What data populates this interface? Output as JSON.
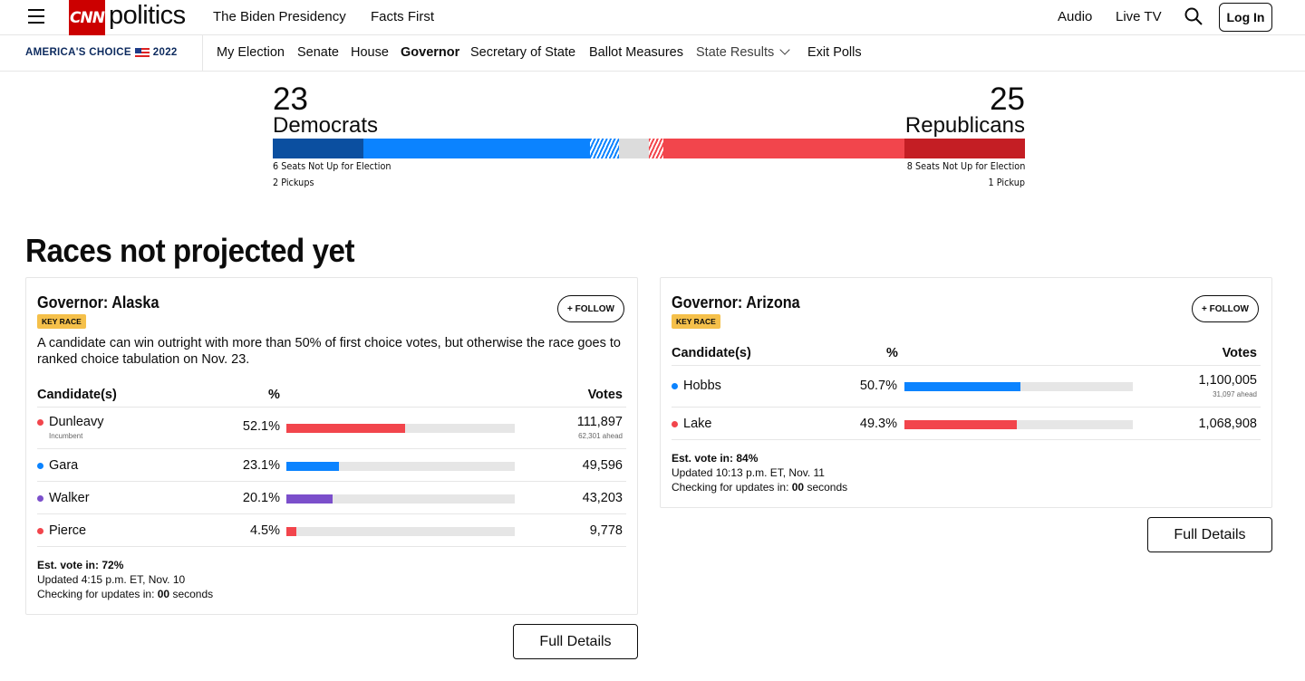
{
  "header": {
    "logo_mark": "CNN",
    "logo_text": "politics",
    "links": [
      "The Biden Presidency",
      "Facts First"
    ],
    "right_links": [
      "Audio",
      "Live TV"
    ],
    "login_label": "Log In"
  },
  "subnav": {
    "brand_left": "AMERICA'S CHOICE",
    "brand_year": "2022",
    "items": [
      "My Election",
      "Senate",
      "House",
      "Governor",
      "Secretary of State",
      "Ballot Measures",
      "State Results",
      "Exit Polls"
    ],
    "active": "Governor"
  },
  "balance": {
    "dem_count": "23",
    "dem_label": "Democrats",
    "rep_count": "25",
    "rep_label": "Republicans",
    "dem_not_up": "6 Seats Not Up for Election",
    "dem_pickups": "2 Pickups",
    "rep_not_up": "8 Seats Not Up for Election",
    "rep_pickups": "1 Pickup",
    "colors": {
      "dem_dark": "#0b4fa0",
      "dem": "#0b83ff",
      "undecided": "#dcdcdc",
      "rep": "#f2454c",
      "rep_dark": "#c41e24"
    }
  },
  "section_title": "Races not projected yet",
  "races": [
    {
      "title": "Governor: Alaska",
      "badge": "KEY RACE",
      "follow_label": "+ FOLLOW",
      "description": "A candidate can win outright with more than 50% of first choice votes, but otherwise the race goes to ranked choice tabulation on Nov. 23.",
      "col_candidate": "Candidate(s)",
      "col_pct": "%",
      "col_votes": "Votes",
      "candidates": [
        {
          "name": "Dunleavy",
          "sub": "Incumbent",
          "pct": "52.1%",
          "pct_value": 52.1,
          "votes": "111,897",
          "ahead": "62,301 ahead",
          "color": "#f2454c"
        },
        {
          "name": "Gara",
          "sub": "",
          "pct": "23.1%",
          "pct_value": 23.1,
          "votes": "49,596",
          "ahead": "",
          "color": "#0b83ff"
        },
        {
          "name": "Walker",
          "sub": "",
          "pct": "20.1%",
          "pct_value": 20.1,
          "votes": "43,203",
          "ahead": "",
          "color": "#7b4fcb"
        },
        {
          "name": "Pierce",
          "sub": "",
          "pct": "4.5%",
          "pct_value": 4.5,
          "votes": "9,778",
          "ahead": "",
          "color": "#f2454c"
        }
      ],
      "est_label": "Est. vote in: 72%",
      "updated": "Updated 4:15 p.m. ET, Nov. 10",
      "checking_prefix": "Checking for updates in: ",
      "checking_count": "00",
      "checking_suffix": " seconds",
      "details_label": "Full Details"
    },
    {
      "title": "Governor: Arizona",
      "badge": "KEY RACE",
      "follow_label": "+ FOLLOW",
      "col_candidate": "Candidate(s)",
      "col_pct": "%",
      "col_votes": "Votes",
      "candidates": [
        {
          "name": "Hobbs",
          "pct": "50.7%",
          "pct_value": 50.7,
          "votes": "1,100,005",
          "ahead": "31,097 ahead",
          "color": "#0b83ff"
        },
        {
          "name": "Lake",
          "pct": "49.3%",
          "pct_value": 49.3,
          "votes": "1,068,908",
          "ahead": "",
          "color": "#f2454c"
        }
      ],
      "est_label": "Est. vote in: 84%",
      "updated": "Updated 10:13 p.m. ET, Nov. 11",
      "checking_prefix": "Checking for updates in: ",
      "checking_count": "00",
      "checking_suffix": " seconds",
      "details_label": "Full Details"
    }
  ]
}
